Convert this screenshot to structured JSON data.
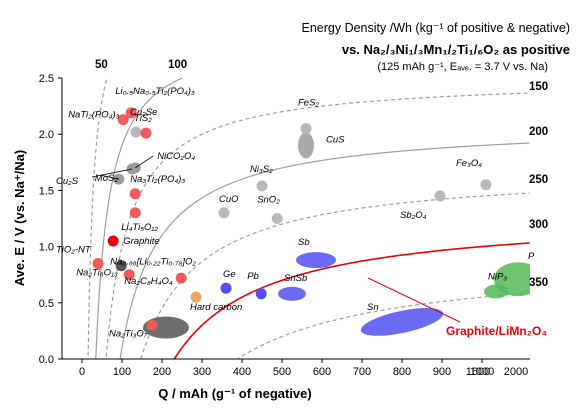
{
  "chart_data": {
    "type": "scatter",
    "header": {
      "line1": "Energy Density /Wh (kg⁻¹ of positive & negative)",
      "line2": "vs. Na₂/₃Ni₁/₃Mn₁/₂Ti₁/₆O₂ as positive",
      "line3": "(125 mAh g⁻¹, Eₐᵥₑ. = 3.7 V vs. Na)"
    },
    "xlabel": "Q  /  mAh (g⁻¹ of negative)",
    "ylabel": "Ave. E  /  V (vs. Na⁺/Na)",
    "xlim": [
      -50,
      1120
    ],
    "ylim": [
      0,
      2.5
    ],
    "x_ticks": [
      {
        "v": 0,
        "label": "0"
      },
      {
        "v": 100,
        "label": "100"
      },
      {
        "v": 200,
        "label": "200"
      },
      {
        "v": 300,
        "label": "300"
      },
      {
        "v": 400,
        "label": "400"
      },
      {
        "v": 500,
        "label": "500"
      },
      {
        "v": 600,
        "label": "600"
      },
      {
        "v": 700,
        "label": "700"
      },
      {
        "v": 800,
        "label": "800"
      },
      {
        "v": 900,
        "label": "900"
      },
      {
        "v": 1000,
        "label": "1000"
      }
    ],
    "x_ticks_break": [
      {
        "label": "1600"
      },
      {
        "label": "2000"
      }
    ],
    "y_ticks": [
      {
        "v": 0.0,
        "label": "0.0"
      },
      {
        "v": 0.5,
        "label": "0.5"
      },
      {
        "v": 1.0,
        "label": "1.0"
      },
      {
        "v": 1.5,
        "label": "1.5"
      },
      {
        "v": 2.0,
        "label": "2.0"
      },
      {
        "v": 2.5,
        "label": "2.5"
      }
    ],
    "contours": [
      {
        "label": "50",
        "value": 50,
        "style": "dashed",
        "color": "#9e9e9e"
      },
      {
        "label": "100",
        "value": 100,
        "style": "solid",
        "color": "#9e9e9e"
      },
      {
        "label": "150",
        "value": 150,
        "style": "dashed",
        "color": "#9e9e9e"
      },
      {
        "label": "200",
        "value": 200,
        "style": "solid",
        "color": "#9e9e9e"
      },
      {
        "label": "250",
        "value": 250,
        "style": "dashed",
        "color": "#9e9e9e"
      },
      {
        "label": "300",
        "value": 300,
        "style": "solid",
        "color": "#e8000b"
      },
      {
        "label": "350",
        "value": 350,
        "style": "dashed",
        "color": "#9e9e9e"
      }
    ],
    "points": [
      {
        "label": "Li₀.₅Na₀.₅Ti₂(PO₄)₃",
        "x": 123,
        "y": 2.19,
        "color": "#f05a5a"
      },
      {
        "label": "NaTi₂(PO₄)₃",
        "x": 103,
        "y": 2.13,
        "color": "#f05a5a"
      },
      {
        "label": "Cu₂Se",
        "x": 135,
        "y": 2.02,
        "color": "#b8b8b8"
      },
      {
        "label": "TiS₂",
        "x": 160,
        "y": 2.01,
        "color": "#f05a5a"
      },
      {
        "label": "NiCO₂O₄",
        "x": 133,
        "y": 1.7,
        "color": "#9a9a9a"
      },
      {
        "label": "Cu₂S",
        "x": 125,
        "y": 1.69,
        "color": "#9a9a9a"
      },
      {
        "label": "MoS₂",
        "x": 92,
        "y": 1.6,
        "color": "#9a9a9a"
      },
      {
        "label": "Na₃Ti₂(PO₄)₃",
        "x": 133,
        "y": 1.47,
        "color": "#f05a5a"
      },
      {
        "label": "Li₄Ti₅O₁₂",
        "x": 133,
        "y": 1.3,
        "color": "#f05a5a"
      },
      {
        "label": "Graphite",
        "x": 78,
        "y": 1.05,
        "color": "#e8000b"
      },
      {
        "label": "TiO₂-NT",
        "x": 40,
        "y": 0.85,
        "color": "#f05a5a"
      },
      {
        "label": "Na₂Ti₆O₁₃",
        "x": 98,
        "y": 0.83,
        "color": "#555555"
      },
      {
        "label": "Na₀.₆₆[Li₀.₂₂Ti₀.₇₈]O₂",
        "x": 118,
        "y": 0.75,
        "color": "#f05a5a"
      },
      {
        "label": "Na₂C₈H₄O₄",
        "x": 248,
        "y": 0.72,
        "color": "#f05a5a"
      },
      {
        "label": "Hard carbon",
        "x": 285,
        "y": 0.55,
        "color": "#f5a25a"
      },
      {
        "label": "Na₂Ti₃O₇",
        "x": 175,
        "y": 0.3,
        "color": "#f05a5a"
      },
      {
        "label": "Ge",
        "x": 360,
        "y": 0.63,
        "color": "#5050f0"
      },
      {
        "label": "Pb",
        "x": 448,
        "y": 0.58,
        "color": "#5050f0"
      },
      {
        "label": "CuO",
        "x": 355,
        "y": 1.3,
        "color": "#b8b8b8"
      },
      {
        "label": "SnO₂",
        "x": 488,
        "y": 1.25,
        "color": "#b8b8b8"
      },
      {
        "label": "Ni₃S₂",
        "x": 450,
        "y": 1.54,
        "color": "#b8b8b8"
      },
      {
        "label": "FeS₂",
        "x": 560,
        "y": 2.05,
        "color": "#b8b8b8"
      },
      {
        "label": "Fe₃O₄",
        "x": 1010,
        "y": 1.55,
        "color": "#b8b8b8"
      },
      {
        "label": "Sb₂O₄",
        "x": 895,
        "y": 1.45,
        "color": "#b8b8b8"
      }
    ],
    "regions": [
      {
        "label": "CuS",
        "x": 560,
        "y": 1.9,
        "color": "#9a9a9a"
      },
      {
        "label": "Sb",
        "x": 585,
        "y": 0.88,
        "color": "#5050f0"
      },
      {
        "label": "SnSb",
        "x": 525,
        "y": 0.58,
        "color": "#5050f0"
      },
      {
        "label": "Sn",
        "x": 800,
        "y": 0.33,
        "color": "#5050f0"
      },
      {
        "label": "NiP₃",
        "x": 1035,
        "y": 0.6,
        "color": "#55b855"
      },
      {
        "label": "P",
        "x": 1090,
        "y": 0.71,
        "color": "#55b855"
      },
      {
        "label": "graphite-dark-region",
        "x": 210,
        "y": 0.28,
        "color": "#555555"
      }
    ],
    "annotation": {
      "label": "Graphite/LiMn₂O₄",
      "color": "#e8000b"
    }
  }
}
